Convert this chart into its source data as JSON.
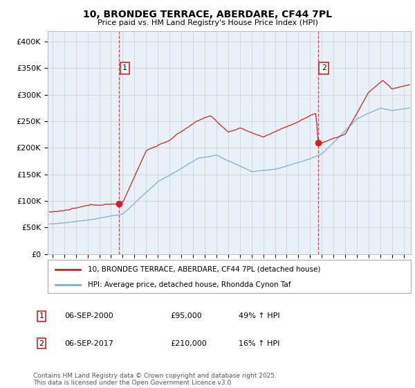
{
  "title": "10, BRONDEG TERRACE, ABERDARE, CF44 7PL",
  "subtitle": "Price paid vs. HM Land Registry's House Price Index (HPI)",
  "ylim": [
    0,
    420000
  ],
  "yticks": [
    0,
    50000,
    100000,
    150000,
    200000,
    250000,
    300000,
    350000,
    400000
  ],
  "ytick_labels": [
    "£0",
    "£50K",
    "£100K",
    "£150K",
    "£200K",
    "£250K",
    "£300K",
    "£350K",
    "£400K"
  ],
  "xlim_start": 1994.6,
  "xlim_end": 2025.6,
  "purchase1_date": 2000.67,
  "purchase1_price": 95000,
  "purchase2_date": 2017.67,
  "purchase2_price": 210000,
  "red_color": "#cc2222",
  "blue_color": "#7aaed6",
  "plot_bg_color": "#e8f0f8",
  "marker_box_color": "#cc2222",
  "legend_line1": "10, BRONDEG TERRACE, ABERDARE, CF44 7PL (detached house)",
  "legend_line2": "HPI: Average price, detached house, Rhondda Cynon Taf",
  "table_row1": [
    "1",
    "06-SEP-2000",
    "£95,000",
    "49% ↑ HPI"
  ],
  "table_row2": [
    "2",
    "06-SEP-2017",
    "£210,000",
    "16% ↑ HPI"
  ],
  "footer": "Contains HM Land Registry data © Crown copyright and database right 2025.\nThis data is licensed under the Open Government Licence v3.0.",
  "background_color": "#ffffff",
  "grid_color": "#cccccc"
}
